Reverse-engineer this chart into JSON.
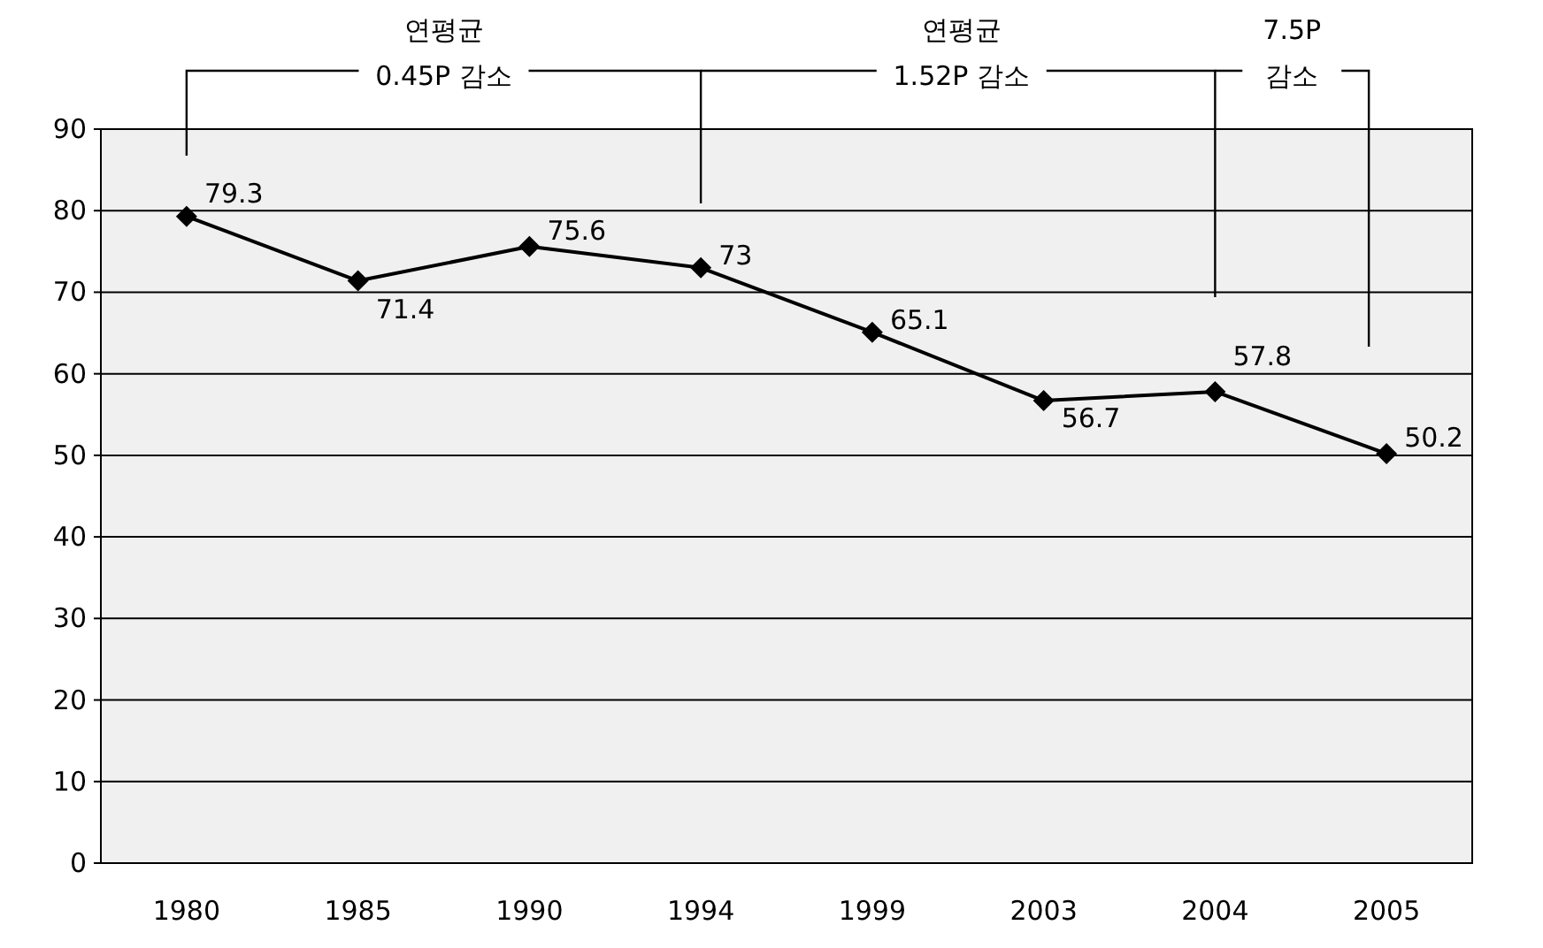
{
  "chart_data": {
    "type": "line",
    "categories": [
      "1980",
      "1985",
      "1990",
      "1994",
      "1999",
      "2003",
      "2004",
      "2005"
    ],
    "series": [
      {
        "color": "#000000",
        "values": [
          79.3,
          71.4,
          75.6,
          73,
          65.1,
          56.7,
          57.8,
          50.2
        ]
      }
    ],
    "ylim": [
      0,
      90
    ],
    "yticks": [
      0,
      10,
      20,
      30,
      40,
      50,
      60,
      70,
      80,
      90
    ],
    "grid": "y",
    "marker": "diamond",
    "line_style": "solid",
    "data_labels": true,
    "annotations": [
      "연평균\n0.45P 감소",
      "연평균\n1.52P 감소",
      "7.5P\n감소"
    ]
  }
}
